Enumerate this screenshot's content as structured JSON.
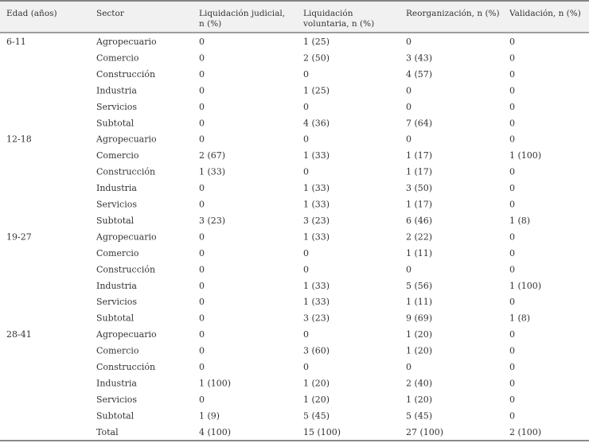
{
  "table": {
    "header": [
      "Edad (años)",
      "Sector",
      "Liquidación judicial, n (%)",
      "Liquidación voluntaria, n (%)",
      "Reorganización, n (%)",
      "Validación, n (%)"
    ],
    "groups": [
      {
        "age": "6-11",
        "rows": [
          [
            "Agropecuario",
            "0",
            "1 (25)",
            "0",
            "0"
          ],
          [
            "Comercio",
            "0",
            "2 (50)",
            "3 (43)",
            "0"
          ],
          [
            "Construcción",
            "0",
            "0",
            "4 (57)",
            "0"
          ],
          [
            "Industria",
            "0",
            "1 (25)",
            "0",
            "0"
          ],
          [
            "Servicios",
            "0",
            "0",
            "0",
            "0"
          ],
          [
            "Subtotal",
            "0",
            "4 (36)",
            "7 (64)",
            "0"
          ]
        ]
      },
      {
        "age": "12-18",
        "rows": [
          [
            "Agropecuario",
            "0",
            "0",
            "0",
            "0"
          ],
          [
            "Comercio",
            "2 (67)",
            "1 (33)",
            "1 (17)",
            "1 (100)"
          ],
          [
            "Construcción",
            "1 (33)",
            "0",
            "1 (17)",
            "0"
          ],
          [
            "Industria",
            "0",
            "1 (33)",
            "3 (50)",
            "0"
          ],
          [
            "Servicios",
            "0",
            "1 (33)",
            "1 (17)",
            "0"
          ],
          [
            "Subtotal",
            "3 (23)",
            "3 (23)",
            "6 (46)",
            "1 (8)"
          ]
        ]
      },
      {
        "age": "19-27",
        "rows": [
          [
            "Agropecuario",
            "0",
            "1 (33)",
            "2 (22)",
            "0"
          ],
          [
            "Comercio",
            "0",
            "0",
            "1 (11)",
            "0"
          ],
          [
            "Construcción",
            "0",
            "0",
            "0",
            "0"
          ],
          [
            "Industria",
            "0",
            "1 (33)",
            "5 (56)",
            "1 (100)"
          ],
          [
            "Servicios",
            "0",
            "1 (33)",
            "1 (11)",
            "0"
          ],
          [
            "Subtotal",
            "0",
            "3 (23)",
            "9 (69)",
            "1 (8)"
          ]
        ]
      },
      {
        "age": "28-41",
        "rows": [
          [
            "Agropecuario",
            "0",
            "0",
            "1 (20)",
            "0"
          ],
          [
            "Comercio",
            "0",
            "3 (60)",
            "1 (20)",
            "0"
          ],
          [
            "Construcción",
            "0",
            "0",
            "0",
            "0"
          ],
          [
            "Industria",
            "1 (100)",
            "1 (20)",
            "2 (40)",
            "0"
          ],
          [
            "Servicios",
            "0",
            "1 (20)",
            "1 (20)",
            "0"
          ],
          [
            "Subtotal",
            "1 (9)",
            "5 (45)",
            "5 (45)",
            "0"
          ]
        ]
      }
    ],
    "total": [
      "Total",
      "4 (100)",
      "15 (100)",
      "27 (100)",
      "2 (100)"
    ]
  }
}
